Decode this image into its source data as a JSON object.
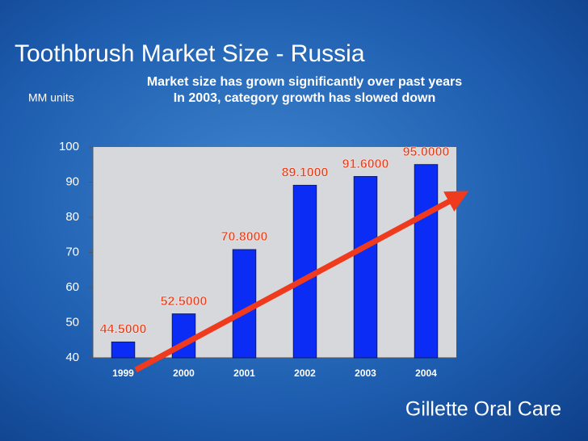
{
  "chart_data": {
    "type": "bar",
    "title": "Toothbrush Market Size - Russia",
    "subtitle": [
      "Market size has grown significantly over past years",
      "In 2003, category growth has slowed down"
    ],
    "y_label": "MM units",
    "categories": [
      "1999",
      "2000",
      "2001",
      "2002",
      "2003",
      "2004"
    ],
    "values": [
      44.5,
      52.5,
      70.8,
      89.1,
      91.6,
      95.0
    ],
    "value_labels": [
      "44.5000",
      "52.5000",
      "70.8000",
      "89.1000",
      "91.6000",
      "95.0000"
    ],
    "color": "#0a2cf5",
    "label_color": "#e8401c",
    "ylim": [
      40,
      100
    ],
    "yticks": [
      40,
      50,
      60,
      70,
      80,
      90,
      100
    ],
    "grid": false
  },
  "logo": "Gillette Oral Care"
}
